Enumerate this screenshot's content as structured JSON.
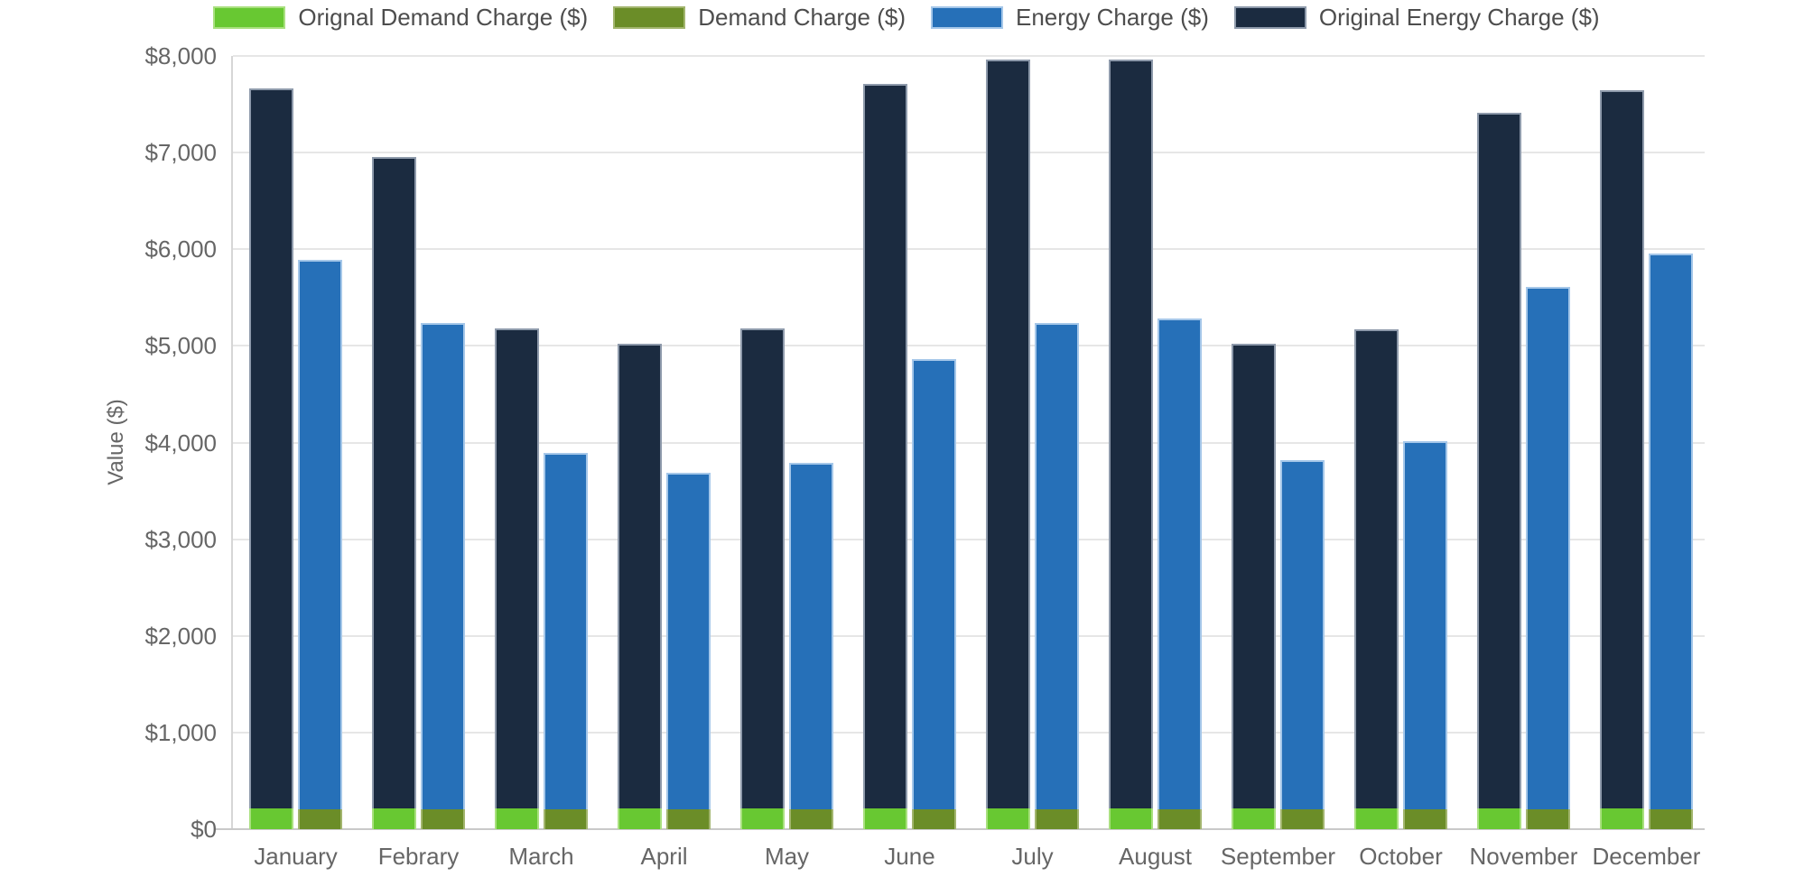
{
  "chart_data": {
    "type": "bar",
    "stacked": true,
    "title": "",
    "legend_position": "top",
    "grid": true,
    "categories": [
      "January",
      "Febrary",
      "March",
      "April",
      "May",
      "June",
      "July",
      "August",
      "September",
      "October",
      "November",
      "December"
    ],
    "series": [
      {
        "name": "Orignal Demand Charge ($)",
        "stack": "original",
        "order": 0,
        "color": "#68c832",
        "border_color": "#a9e07f",
        "values": [
          215,
          215,
          215,
          215,
          215,
          215,
          215,
          215,
          215,
          215,
          215,
          215
        ]
      },
      {
        "name": "Demand Charge ($)",
        "stack": "actual",
        "order": 0,
        "color": "#6b8d28",
        "border_color": "#a2b56e",
        "values": [
          210,
          210,
          210,
          210,
          210,
          210,
          210,
          210,
          210,
          210,
          210,
          210
        ]
      },
      {
        "name": "Energy Charge ($)",
        "stack": "actual",
        "order": 1,
        "color": "#2670b8",
        "border_color": "#a5c7e9",
        "values": [
          5680,
          5030,
          3680,
          3480,
          3580,
          4650,
          5030,
          5070,
          3610,
          3800,
          5400,
          5750
        ]
      },
      {
        "name": "Original Energy Charge ($)",
        "stack": "original",
        "order": 1,
        "color": "#1b2b40",
        "border_color": "#8e9aab",
        "values": [
          7445,
          6735,
          4965,
          4805,
          4965,
          7495,
          7745,
          7745,
          4805,
          4955,
          7195,
          7435
        ]
      }
    ],
    "stack_totals": {
      "original": [
        7660,
        6950,
        5180,
        5020,
        5180,
        7710,
        7960,
        7960,
        5020,
        5170,
        7410,
        7650
      ],
      "actual": [
        5890,
        5240,
        3890,
        3690,
        3790,
        4860,
        5240,
        5280,
        3820,
        4010,
        5610,
        5960
      ]
    },
    "y_axis": {
      "title": "Value ($)",
      "min": 0,
      "max": 8000,
      "tick_interval": 1000,
      "tick_labels": [
        "$0",
        "$1,000",
        "$2,000",
        "$3,000",
        "$4,000",
        "$5,000",
        "$6,000",
        "$7,000",
        "$8,000"
      ]
    },
    "x_axis": {
      "label": ""
    },
    "text_colors": {
      "axis": "#666666",
      "legend": "#4d4d4d"
    }
  }
}
